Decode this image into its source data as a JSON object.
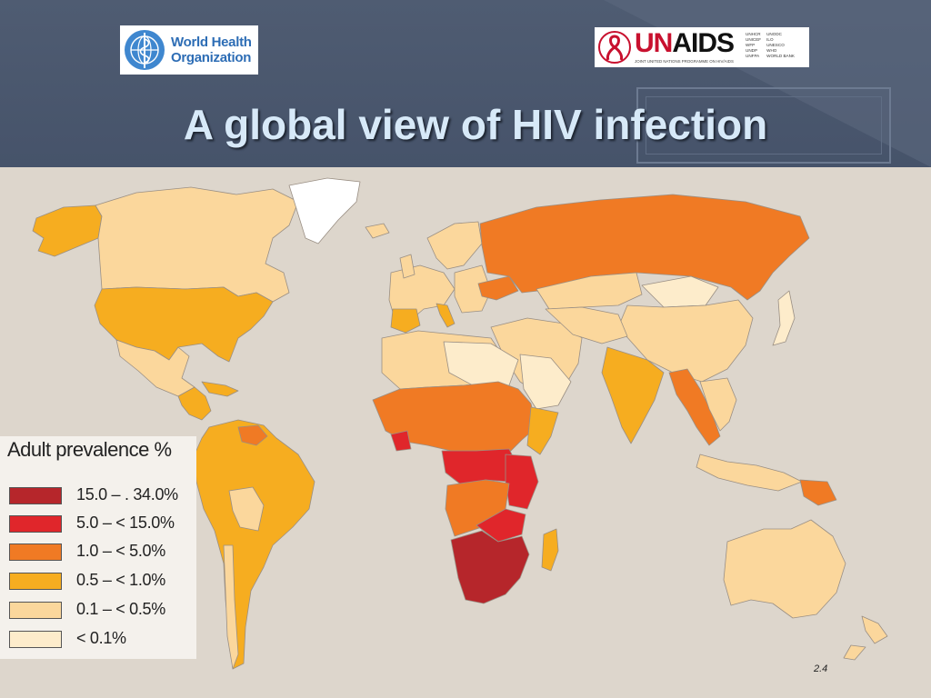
{
  "slide": {
    "title": "A global view of HIV infection",
    "page_number": "2.4"
  },
  "logos": {
    "who": {
      "line1": "World Health",
      "line2": "Organization"
    },
    "unaids": {
      "name_prefix": "UN",
      "name_suffix": "AIDS",
      "subtitle": "JOINT UNITED NATIONS PROGRAMME ON HIV/AIDS",
      "cosponsors_left": [
        "UNHCR",
        "UNICEF",
        "WFP",
        "UNDP",
        "UNFPA"
      ],
      "cosponsors_right": [
        "UNODC",
        "ILO",
        "UNESCO",
        "WHO",
        "WORLD BANK"
      ]
    }
  },
  "legend": {
    "title": "Adult prevalence %",
    "items": [
      {
        "label": "15.0  –  . 34.0%",
        "color": "#b6262b"
      },
      {
        "label": "5.0  –  < 15.0%",
        "color": "#e0262b"
      },
      {
        "label": "1.0  –   < 5.0%",
        "color": "#f07a24"
      },
      {
        "label": "0.5  –   < 1.0%",
        "color": "#f6ad20"
      },
      {
        "label": "0.1  –  < 0.5%",
        "color": "#fbd79c"
      },
      {
        "label": "< 0.1%",
        "color": "#fdeccb"
      }
    ]
  },
  "colors": {
    "ocean": "#ddd6cc",
    "header_bg": "#47546a",
    "title_text": "#d7e9f8",
    "no_data": "#ffffff"
  }
}
